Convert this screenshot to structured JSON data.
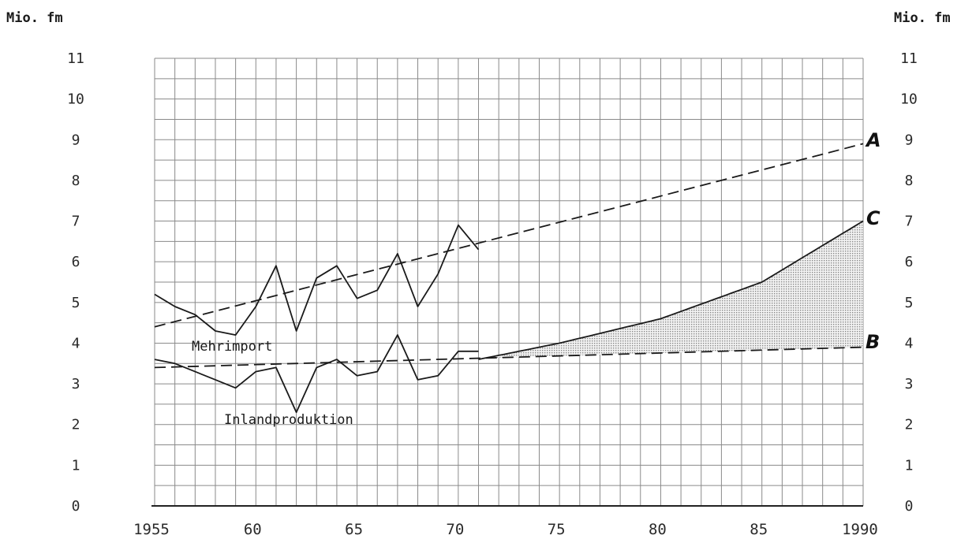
{
  "chart_data": {
    "type": "line",
    "unit_label": "Mio. fm",
    "xlim": [
      1955,
      1990
    ],
    "ylim": [
      0,
      11
    ],
    "grid": true,
    "x_tick_labels": [
      {
        "x": 1955,
        "label": "1955"
      },
      {
        "x": 1960,
        "label": "60"
      },
      {
        "x": 1965,
        "label": "65"
      },
      {
        "x": 1970,
        "label": "70"
      },
      {
        "x": 1975,
        "label": "75"
      },
      {
        "x": 1980,
        "label": "80"
      },
      {
        "x": 1985,
        "label": "85"
      },
      {
        "x": 1990,
        "label": "1990"
      }
    ],
    "y_ticks": [
      "0",
      "1",
      "2",
      "3",
      "4",
      "5",
      "6",
      "7",
      "8",
      "9",
      "10",
      "11"
    ],
    "series": [
      {
        "name": "Mehrimport",
        "style": "solid",
        "x": [
          1955,
          1956,
          1957,
          1958,
          1959,
          1960,
          1961,
          1962,
          1963,
          1964,
          1965,
          1966,
          1967,
          1968,
          1969,
          1970,
          1971
        ],
        "y": [
          5.2,
          4.9,
          4.7,
          4.3,
          4.2,
          4.9,
          5.9,
          4.3,
          5.6,
          5.9,
          5.1,
          5.3,
          6.2,
          4.9,
          5.7,
          6.9,
          6.3
        ]
      },
      {
        "name": "Inlandproduktion",
        "style": "solid",
        "x": [
          1955,
          1956,
          1957,
          1958,
          1959,
          1960,
          1961,
          1962,
          1963,
          1964,
          1965,
          1966,
          1967,
          1968,
          1969,
          1970,
          1971
        ],
        "y": [
          3.6,
          3.5,
          3.3,
          3.1,
          2.9,
          3.3,
          3.4,
          2.3,
          3.4,
          3.6,
          3.2,
          3.3,
          4.2,
          3.1,
          3.2,
          3.8,
          3.8
        ]
      },
      {
        "name": "A",
        "style": "dashed",
        "x": [
          1955,
          1990
        ],
        "y": [
          4.4,
          8.9
        ]
      },
      {
        "name": "B",
        "style": "dashed",
        "x": [
          1955,
          1990
        ],
        "y": [
          3.4,
          3.9
        ]
      },
      {
        "name": "C",
        "style": "solid",
        "x": [
          1971,
          1975,
          1980,
          1985,
          1990
        ],
        "y": [
          3.6,
          4.0,
          4.6,
          5.5,
          7.0
        ]
      }
    ],
    "series_labels": {
      "mehrimport": "Mehrimport",
      "inlandproduktion": "Inlandproduktion",
      "a": "A",
      "b": "B",
      "c": "C"
    },
    "shaded_region": {
      "between": [
        "C",
        "B"
      ],
      "x_from": 1971,
      "x_to": 1990,
      "fill": "#aaaaaa"
    }
  }
}
